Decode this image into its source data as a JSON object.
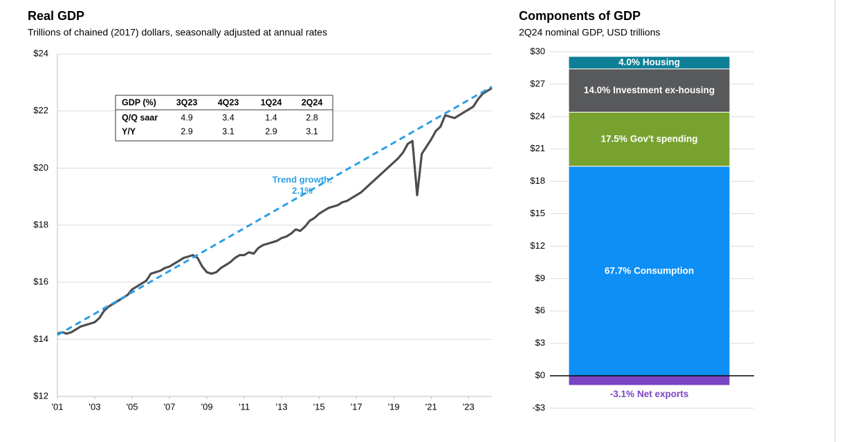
{
  "chart_data": [
    {
      "type": "line",
      "title": "Real GDP",
      "subtitle": "Trillions of chained (2017) dollars, seasonally adjusted at annual rates",
      "x": [
        2001,
        2001.25,
        2001.5,
        2001.75,
        2002,
        2002.25,
        2002.5,
        2002.75,
        2003,
        2003.25,
        2003.5,
        2003.75,
        2004,
        2004.25,
        2004.5,
        2004.75,
        2005,
        2005.25,
        2005.5,
        2005.75,
        2006,
        2006.25,
        2006.5,
        2006.75,
        2007,
        2007.25,
        2007.5,
        2007.75,
        2008,
        2008.25,
        2008.5,
        2008.75,
        2009,
        2009.25,
        2009.5,
        2009.75,
        2010,
        2010.25,
        2010.5,
        2010.75,
        2011,
        2011.25,
        2011.5,
        2011.75,
        2012,
        2012.25,
        2012.5,
        2012.75,
        2013,
        2013.25,
        2013.5,
        2013.75,
        2014,
        2014.25,
        2014.5,
        2014.75,
        2015,
        2015.25,
        2015.5,
        2015.75,
        2016,
        2016.25,
        2016.5,
        2016.75,
        2017,
        2017.25,
        2017.5,
        2017.75,
        2018,
        2018.25,
        2018.5,
        2018.75,
        2019,
        2019.25,
        2019.5,
        2019.75,
        2020,
        2020.25,
        2020.5,
        2020.75,
        2021,
        2021.25,
        2021.5,
        2021.75,
        2022,
        2022.25,
        2022.5,
        2022.75,
        2023,
        2023.25,
        2023.5,
        2023.75,
        2024,
        2024.25
      ],
      "series": [
        {
          "color": "#4d4d4f",
          "values": [
            14.2,
            14.25,
            14.2,
            14.25,
            14.35,
            14.45,
            14.5,
            14.55,
            14.6,
            14.75,
            15.0,
            15.15,
            15.25,
            15.35,
            15.45,
            15.55,
            15.75,
            15.85,
            15.95,
            16.05,
            16.3,
            16.35,
            16.4,
            16.5,
            16.55,
            16.65,
            16.75,
            16.85,
            16.9,
            16.95,
            16.85,
            16.55,
            16.35,
            16.3,
            16.35,
            16.5,
            16.6,
            16.7,
            16.85,
            16.95,
            16.95,
            17.05,
            17.0,
            17.2,
            17.3,
            17.35,
            17.4,
            17.45,
            17.55,
            17.6,
            17.7,
            17.85,
            17.8,
            17.95,
            18.15,
            18.25,
            18.4,
            18.5,
            18.6,
            18.65,
            18.7,
            18.8,
            18.85,
            18.95,
            19.05,
            19.15,
            19.3,
            19.45,
            19.6,
            19.75,
            19.9,
            20.05,
            20.2,
            20.35,
            20.55,
            20.85,
            20.95,
            19.05,
            20.5,
            20.75,
            21.0,
            21.3,
            21.45,
            21.85,
            21.8,
            21.75,
            21.85,
            21.95,
            22.05,
            22.15,
            22.4,
            22.6,
            22.7,
            22.8
          ]
        },
        {
          "color": "#2b9fe6",
          "dashed": true,
          "x": [
            2001,
            2024.25
          ],
          "values": [
            14.15,
            22.85
          ]
        }
      ],
      "annotation": [
        "Trend growth:",
        "2.1%"
      ],
      "table": {
        "header": [
          "GDP (%)",
          "3Q23",
          "4Q23",
          "1Q24",
          "2Q24"
        ],
        "rows": [
          [
            "Q/Q saar",
            "4.9",
            "3.4",
            "1.4",
            "2.8"
          ],
          [
            "Y/Y",
            "2.9",
            "3.1",
            "2.9",
            "3.1"
          ]
        ]
      },
      "xlim": [
        2001,
        2024.25
      ],
      "xticks": [
        {
          "value": 2001,
          "label": "'01"
        },
        {
          "value": 2003,
          "label": "'03"
        },
        {
          "value": 2005,
          "label": "'05"
        },
        {
          "value": 2007,
          "label": "'07"
        },
        {
          "value": 2009,
          "label": "'09"
        },
        {
          "value": 2011,
          "label": "'11"
        },
        {
          "value": 2013,
          "label": "'13"
        },
        {
          "value": 2015,
          "label": "'15"
        },
        {
          "value": 2017,
          "label": "'17"
        },
        {
          "value": 2019,
          "label": "'19"
        },
        {
          "value": 2021,
          "label": "'21"
        },
        {
          "value": 2023,
          "label": "'23"
        }
      ],
      "ylim": [
        12,
        24
      ],
      "yticks": [
        {
          "value": 12,
          "label": "$12"
        },
        {
          "value": 14,
          "label": "$14"
        },
        {
          "value": 16,
          "label": "$16"
        },
        {
          "value": 18,
          "label": "$18"
        },
        {
          "value": 20,
          "label": "$20"
        },
        {
          "value": 22,
          "label": "$22"
        },
        {
          "value": 24,
          "label": "$24"
        }
      ],
      "grid": true
    },
    {
      "type": "stacked_bar",
      "title": "Components of GDP",
      "subtitle": "2Q24 nominal GDP, USD trillions",
      "series": [
        {
          "name": "Consumption",
          "share": "67.7%",
          "color": "#0d8ff5",
          "values": [
            19.4
          ]
        },
        {
          "name": "Gov't  spending",
          "share": "17.5%",
          "color": "#78a22f",
          "values": [
            5.01
          ]
        },
        {
          "name": "Investment ex-housing",
          "share": "14.0%",
          "color": "#58595b",
          "values": [
            4.01
          ]
        },
        {
          "name": "Housing",
          "share": "4.0%",
          "color": "#0e7f96",
          "values": [
            1.15
          ]
        },
        {
          "name": "Net exports",
          "share": "-3.1%",
          "color": "#7a44c2",
          "values": [
            -0.89
          ]
        }
      ],
      "ylim": [
        -3,
        30
      ],
      "yticks": [
        {
          "value": -3,
          "label": "-$3"
        },
        {
          "value": 0,
          "label": "$0"
        },
        {
          "value": 3,
          "label": "$3"
        },
        {
          "value": 6,
          "label": "$6"
        },
        {
          "value": 9,
          "label": "$9"
        },
        {
          "value": 12,
          "label": "$12"
        },
        {
          "value": 15,
          "label": "$15"
        },
        {
          "value": 18,
          "label": "$18"
        },
        {
          "value": 21,
          "label": "$21"
        },
        {
          "value": 24,
          "label": "$24"
        },
        {
          "value": 27,
          "label": "$27"
        },
        {
          "value": 30,
          "label": "$30"
        }
      ],
      "grid": true
    }
  ]
}
